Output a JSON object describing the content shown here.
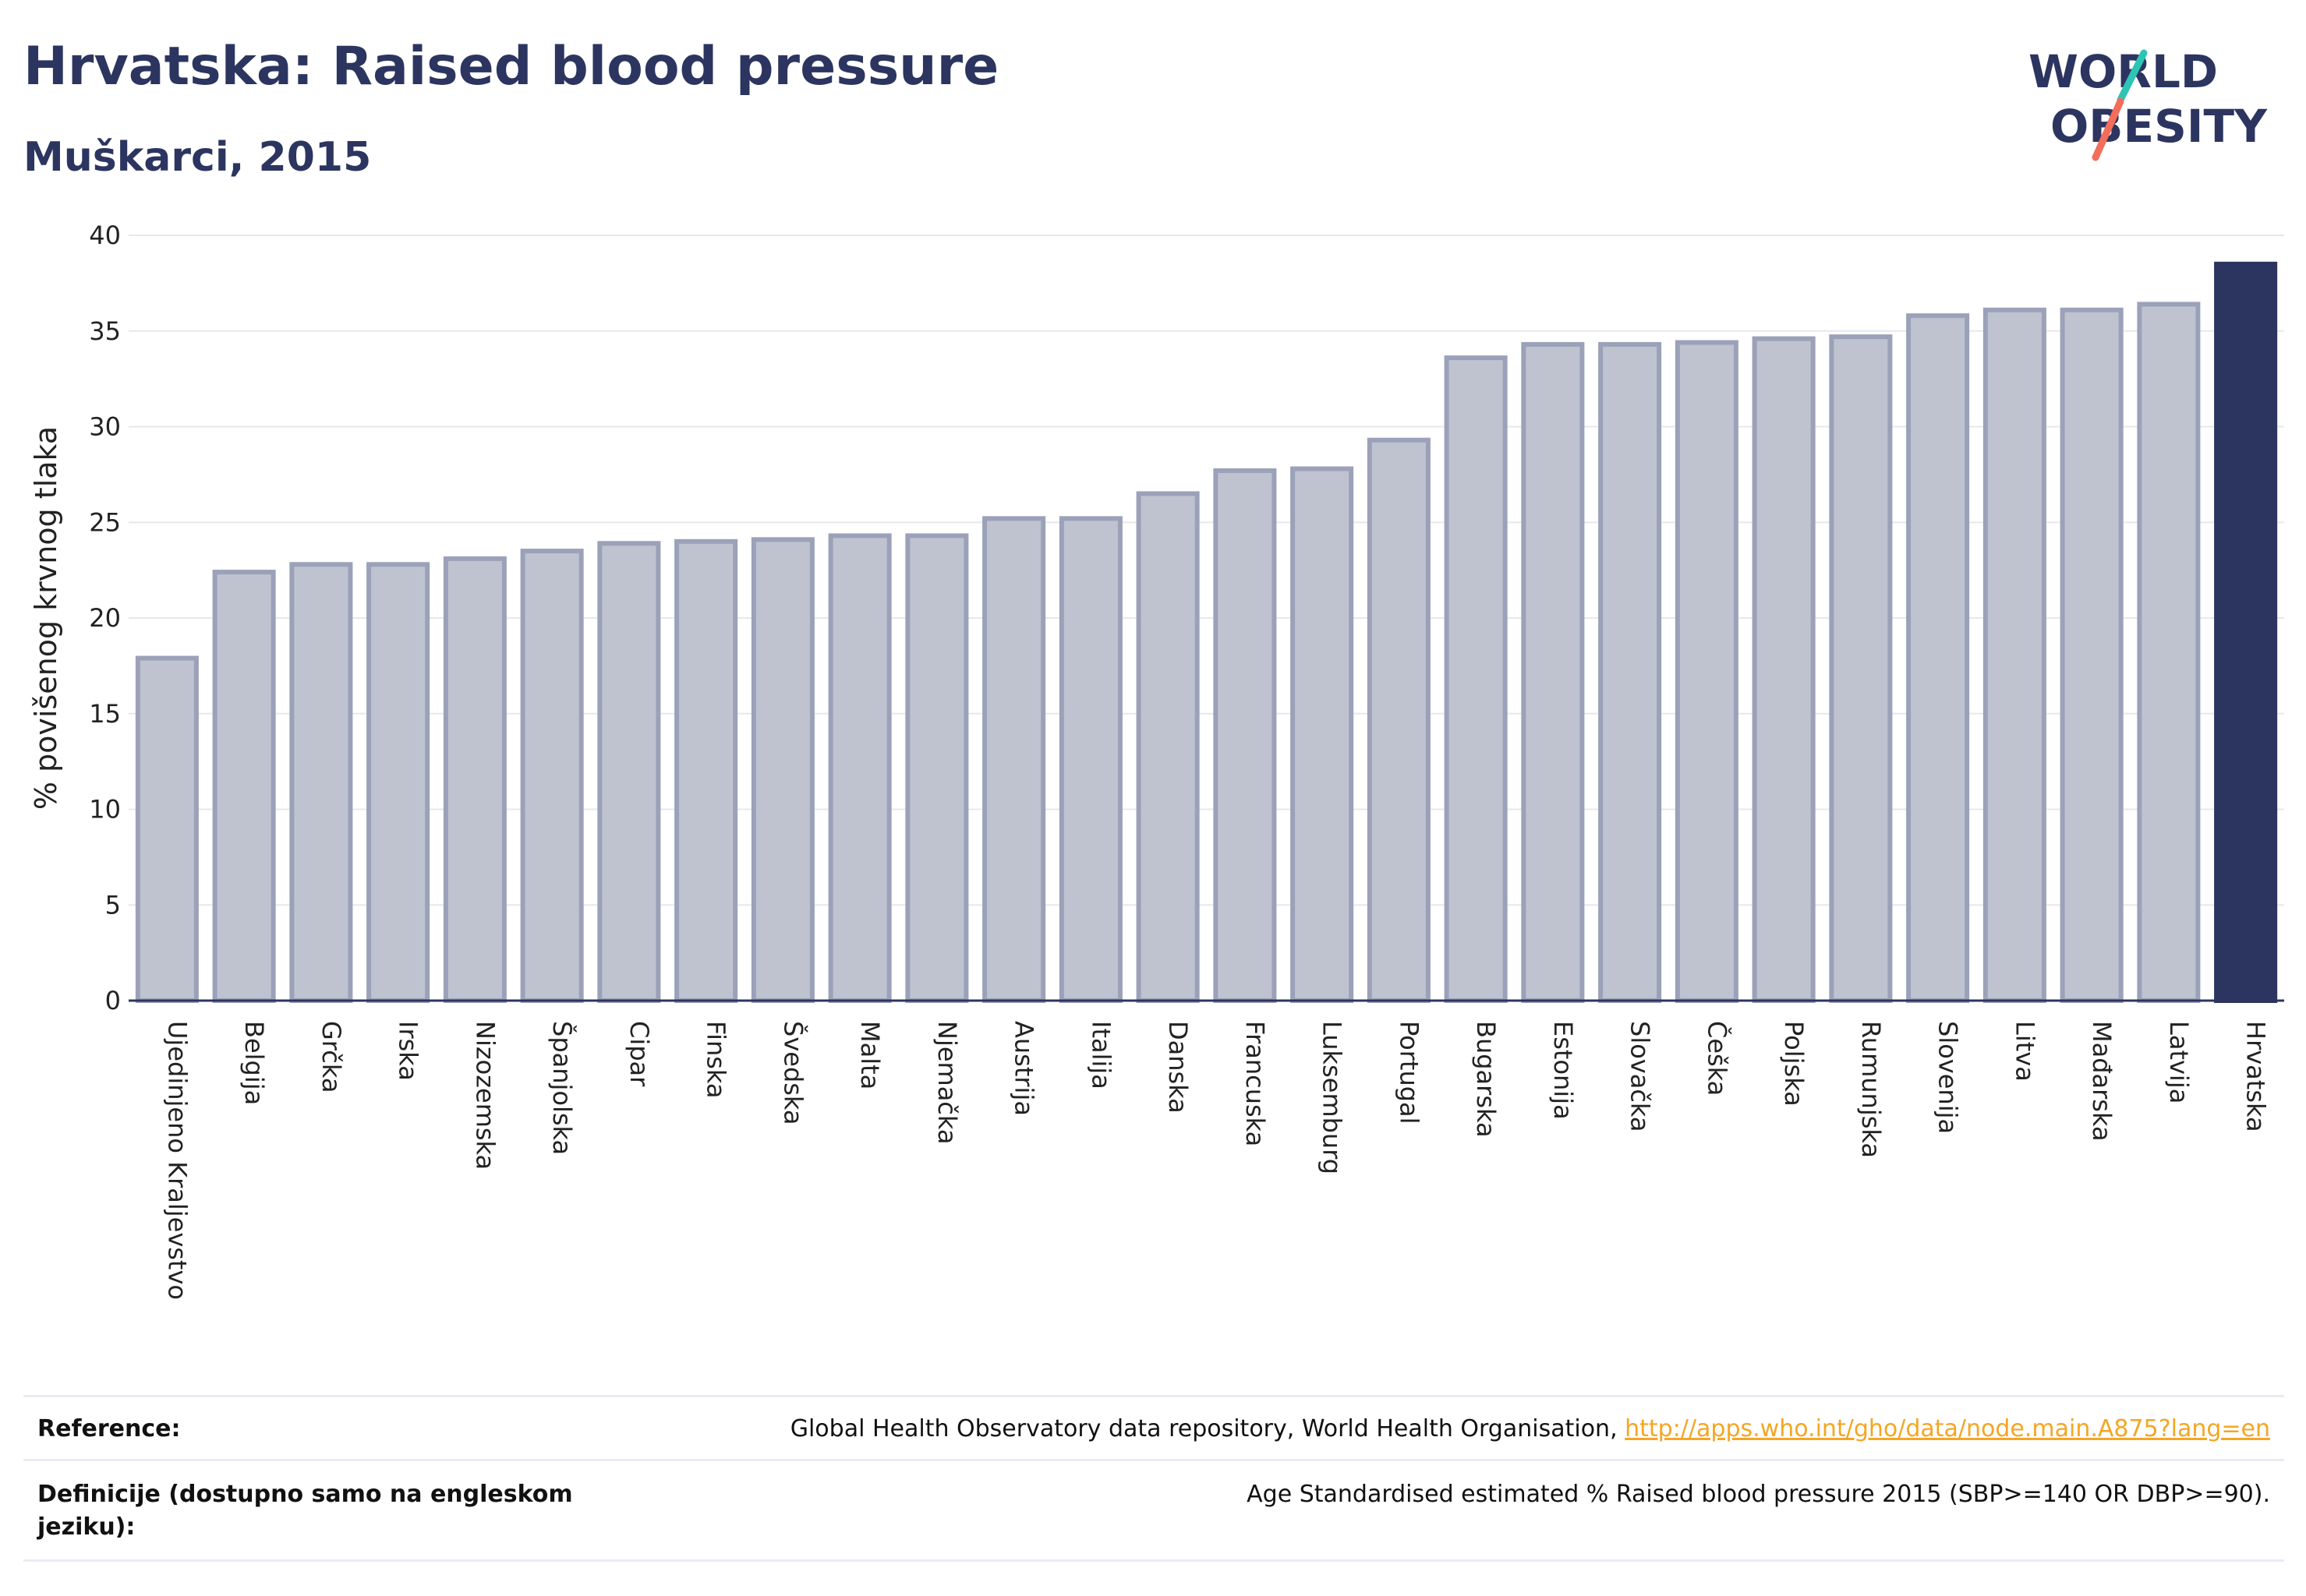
{
  "header": {
    "title": "Hrvatska: Raised blood pressure",
    "subtitle": "Muškarci, 2015"
  },
  "logo": {
    "line1": "WORLD",
    "line2": "OBESITY"
  },
  "chart_data": {
    "type": "bar",
    "ylabel": "% povišenog krvnog tlaka",
    "ylim": [
      0,
      40
    ],
    "yticks": [
      0,
      5,
      10,
      15,
      20,
      25,
      30,
      35,
      40
    ],
    "grid": true,
    "categories": [
      "Ujedinjeno Kraljevstvo",
      "Belgija",
      "Grčka",
      "Irska",
      "Nizozemska",
      "Španjolska",
      "Cipar",
      "Finska",
      "Švedska",
      "Malta",
      "Njemačka",
      "Austrija",
      "Italija",
      "Danska",
      "Francuska",
      "Luksemburg",
      "Portugal",
      "Bugarska",
      "Estonija",
      "Slovačka",
      "Češka",
      "Poljska",
      "Rumunjska",
      "Slovenija",
      "Litva",
      "Mađarska",
      "Latvija",
      "Hrvatska"
    ],
    "values": [
      17.9,
      22.4,
      22.8,
      22.8,
      23.1,
      23.5,
      23.9,
      24.0,
      24.1,
      24.3,
      24.3,
      25.2,
      25.2,
      26.5,
      27.7,
      27.8,
      29.3,
      33.6,
      34.3,
      34.3,
      34.4,
      34.6,
      34.7,
      35.8,
      36.1,
      36.1,
      36.4,
      38.5
    ],
    "highlight": "Hrvatska",
    "colors": {
      "bar": "#bfc3d0",
      "bar_border": "#9ba1b8",
      "highlight": "#2c3560",
      "grid": "#e6e8ee",
      "axis": "#2c3560"
    }
  },
  "footer": {
    "reference_label": "Reference:",
    "reference_text": "Global Health Observatory data repository, World Health Organisation, ",
    "reference_link": "http://apps.who.int/gho/data/node.main.A875?lang=en",
    "definition_label": "Definicije (dostupno samo na engleskom jeziku):",
    "definition_text": "Age Standardised estimated % Raised blood pressure 2015 (SBP>=140 OR DBP>=90)."
  }
}
